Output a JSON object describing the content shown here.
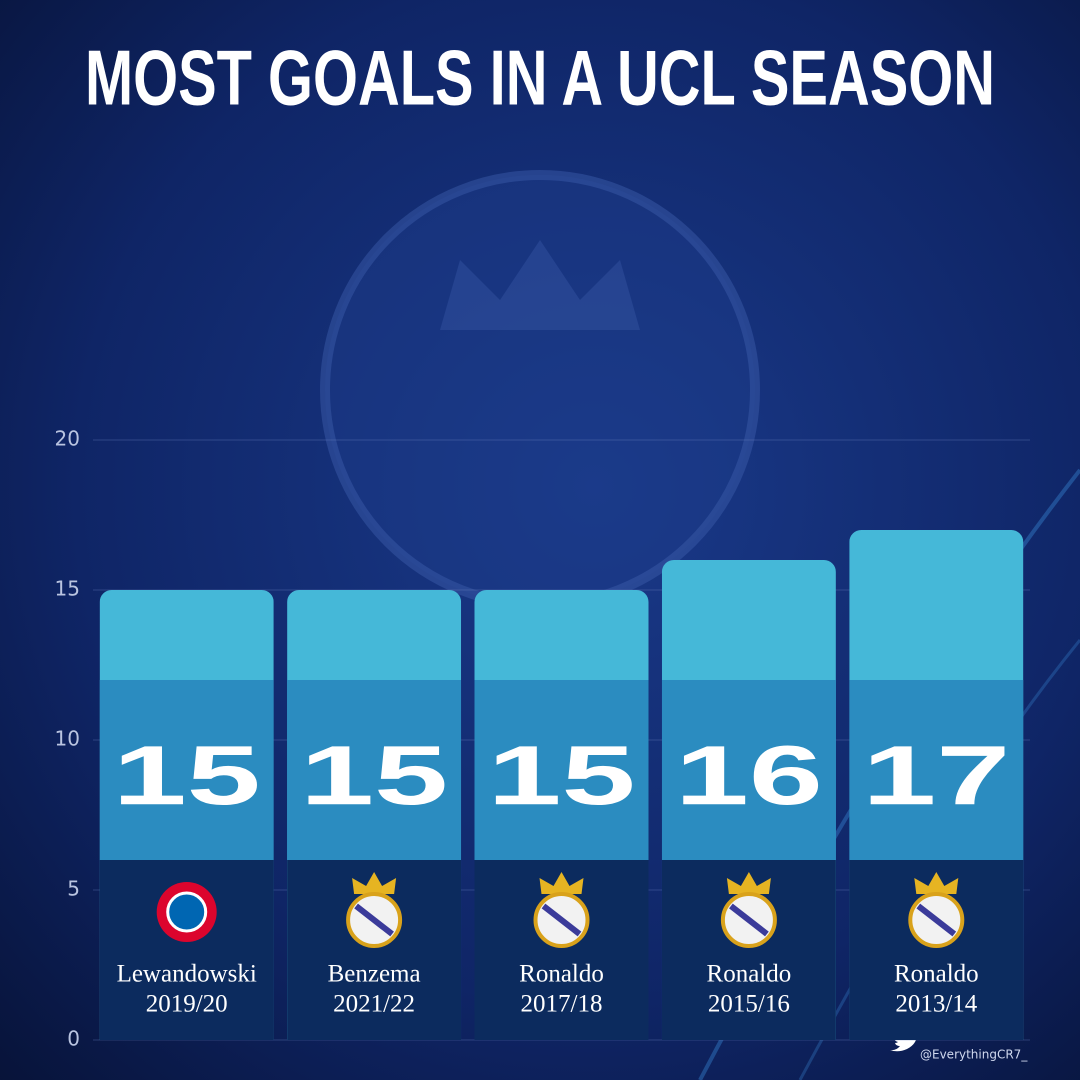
{
  "chart_data": {
    "type": "bar",
    "title": "MOST GOALS IN A UCL SEASON",
    "categories": [
      "Lewandowski",
      "Benzema",
      "Ronaldo",
      "Ronaldo",
      "Ronaldo"
    ],
    "seasons": [
      "2019/20",
      "2021/22",
      "2017/18",
      "2015/16",
      "2013/14"
    ],
    "values": [
      15,
      15,
      15,
      16,
      17
    ],
    "ylim": [
      0,
      20
    ],
    "yticks": [
      0,
      5,
      10,
      15,
      20
    ],
    "grid": true,
    "color": "#45b8d8",
    "credit": "@EverythingCR7_"
  }
}
